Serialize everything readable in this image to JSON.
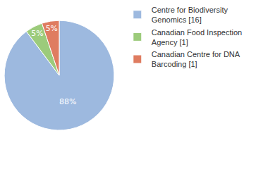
{
  "chart_data": {
    "type": "pie",
    "categories": [
      "Centre for Biodiversity Genomics [16]",
      "Canadian Food Inspection Agency [1]",
      "Canadian Centre for DNA Barcoding [1]"
    ],
    "values": [
      88,
      5,
      5
    ],
    "value_labels": [
      "88%",
      "5%",
      "5%"
    ],
    "colors": [
      "#9db9df",
      "#9ccb7b",
      "#df7c60"
    ],
    "data_labels": true,
    "legend": "right"
  }
}
